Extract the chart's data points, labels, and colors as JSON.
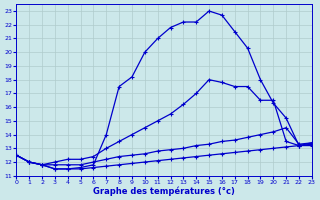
{
  "bg_color": "#cce8ea",
  "grid_color": "#b0cccc",
  "line_color": "#0000cc",
  "xlabel": "Graphe des températures (°c)",
  "xlabel_color": "#0000cc",
  "ylim": [
    11,
    23.5
  ],
  "xlim": [
    0,
    23
  ],
  "yticks": [
    11,
    12,
    13,
    14,
    15,
    16,
    17,
    18,
    19,
    20,
    21,
    22,
    23
  ],
  "xticks": [
    0,
    1,
    2,
    3,
    4,
    5,
    6,
    7,
    8,
    9,
    10,
    11,
    12,
    13,
    14,
    15,
    16,
    17,
    18,
    19,
    20,
    21,
    22,
    23
  ],
  "line1_x": [
    0,
    1,
    2,
    3,
    4,
    5,
    6,
    7,
    8,
    9,
    10,
    11,
    12,
    13,
    14,
    15,
    16,
    17,
    18,
    19,
    20,
    21,
    22,
    23
  ],
  "line1_y": [
    12.5,
    12.0,
    11.8,
    11.5,
    11.5,
    11.6,
    11.8,
    14.0,
    17.5,
    18.2,
    20.0,
    21.0,
    21.8,
    22.2,
    22.2,
    23.0,
    22.7,
    21.5,
    20.3,
    18.0,
    16.3,
    15.2,
    13.2,
    13.2
  ],
  "line2_x": [
    0,
    1,
    2,
    3,
    4,
    5,
    6,
    7,
    8,
    9,
    10,
    11,
    12,
    13,
    14,
    15,
    16,
    17,
    18,
    19,
    20,
    21,
    22,
    23
  ],
  "line2_y": [
    12.5,
    12.0,
    11.8,
    12.0,
    12.2,
    12.2,
    12.4,
    13.0,
    13.5,
    14.0,
    14.5,
    15.0,
    15.5,
    16.2,
    17.0,
    18.0,
    17.8,
    17.5,
    17.5,
    16.5,
    16.5,
    13.5,
    13.2,
    13.3
  ],
  "line3_x": [
    0,
    1,
    2,
    3,
    4,
    5,
    6,
    7,
    8,
    9,
    10,
    11,
    12,
    13,
    14,
    15,
    16,
    17,
    18,
    19,
    20,
    21,
    22,
    23
  ],
  "line3_y": [
    12.5,
    12.0,
    11.8,
    11.8,
    11.8,
    11.8,
    12.0,
    12.2,
    12.4,
    12.5,
    12.6,
    12.8,
    12.9,
    13.0,
    13.2,
    13.3,
    13.5,
    13.6,
    13.8,
    14.0,
    14.2,
    14.5,
    13.3,
    13.4
  ],
  "line4_x": [
    0,
    1,
    2,
    3,
    4,
    5,
    6,
    7,
    8,
    9,
    10,
    11,
    12,
    13,
    14,
    15,
    16,
    17,
    18,
    19,
    20,
    21,
    22,
    23
  ],
  "line4_y": [
    12.5,
    12.0,
    11.8,
    11.5,
    11.5,
    11.5,
    11.6,
    11.7,
    11.8,
    11.9,
    12.0,
    12.1,
    12.2,
    12.3,
    12.4,
    12.5,
    12.6,
    12.7,
    12.8,
    12.9,
    13.0,
    13.1,
    13.2,
    13.4
  ]
}
